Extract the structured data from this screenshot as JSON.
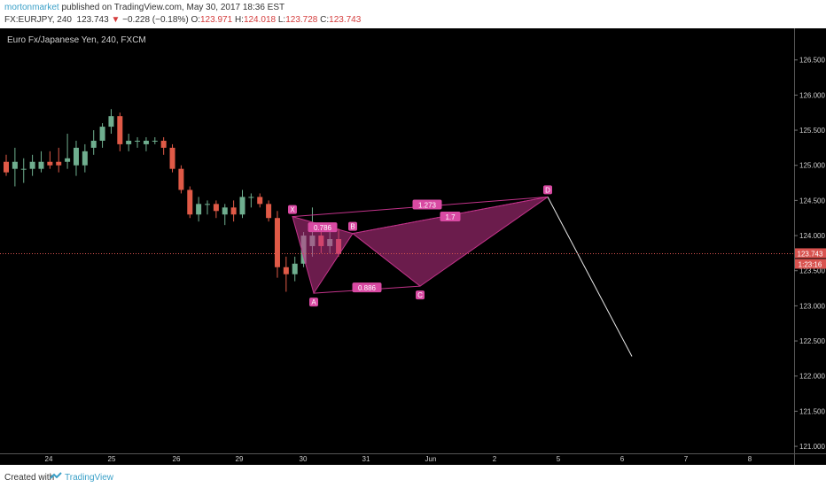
{
  "header": {
    "author": "mortonmarket",
    "published_text": "published on TradingView.com, May 30, 2017 18:36 EST",
    "symbol": "FX:EURJPY, 240",
    "last_price": "123.743",
    "change": "−0.228 (−0.18%)",
    "o_label": "O:",
    "o_value": "123.971",
    "h_label": "H:",
    "h_value": "124.018",
    "l_label": "L:",
    "l_value": "123.728",
    "c_label": "C:",
    "c_value": "123.743"
  },
  "footer": {
    "created_with": "Created with",
    "brand": "TradingView"
  },
  "colors": {
    "up": "#6fae8f",
    "down": "#e05a47",
    "pattern": "#c2338a",
    "label_bg": "#d94aa3",
    "last_price_tag": "#d9534f"
  },
  "chart_data": {
    "type": "candlestick",
    "title": "Euro Fx/Japanese Yen, 240, FXCM",
    "ylim": [
      120.9,
      126.95
    ],
    "y_ticks": [
      "121.000",
      "121.500",
      "122.000",
      "122.500",
      "123.000",
      "123.500",
      "124.000",
      "124.500",
      "125.000",
      "125.500",
      "126.000",
      "126.500"
    ],
    "x_ticks": [
      "24",
      "25",
      "26",
      "29",
      "30",
      "31",
      "Jun",
      "2",
      "5",
      "6",
      "7",
      "8"
    ],
    "last_price": "123.743",
    "countdown": "1:23:16",
    "candles": [
      {
        "o": 125.05,
        "h": 125.15,
        "l": 124.85,
        "c": 124.9
      },
      {
        "o": 124.95,
        "h": 125.25,
        "l": 124.7,
        "c": 125.05
      },
      {
        "o": 124.95,
        "h": 125.1,
        "l": 124.75,
        "c": 124.95
      },
      {
        "o": 124.95,
        "h": 125.15,
        "l": 124.85,
        "c": 125.05
      },
      {
        "o": 124.95,
        "h": 125.2,
        "l": 124.9,
        "c": 125.05
      },
      {
        "o": 125.05,
        "h": 125.2,
        "l": 124.95,
        "c": 125.0
      },
      {
        "o": 125.05,
        "h": 125.25,
        "l": 124.9,
        "c": 125.0
      },
      {
        "o": 125.05,
        "h": 125.45,
        "l": 124.95,
        "c": 125.1
      },
      {
        "o": 125.0,
        "h": 125.35,
        "l": 124.85,
        "c": 125.25
      },
      {
        "o": 125.0,
        "h": 125.3,
        "l": 124.9,
        "c": 125.2
      },
      {
        "o": 125.25,
        "h": 125.5,
        "l": 125.15,
        "c": 125.35
      },
      {
        "o": 125.35,
        "h": 125.6,
        "l": 125.25,
        "c": 125.55
      },
      {
        "o": 125.55,
        "h": 125.8,
        "l": 125.45,
        "c": 125.7
      },
      {
        "o": 125.7,
        "h": 125.75,
        "l": 125.2,
        "c": 125.3
      },
      {
        "o": 125.3,
        "h": 125.45,
        "l": 125.2,
        "c": 125.35
      },
      {
        "o": 125.35,
        "h": 125.4,
        "l": 125.25,
        "c": 125.35
      },
      {
        "o": 125.3,
        "h": 125.4,
        "l": 125.2,
        "c": 125.35
      },
      {
        "o": 125.35,
        "h": 125.4,
        "l": 125.3,
        "c": 125.35
      },
      {
        "o": 125.35,
        "h": 125.4,
        "l": 125.15,
        "c": 125.25
      },
      {
        "o": 125.25,
        "h": 125.3,
        "l": 124.9,
        "c": 124.95
      },
      {
        "o": 124.95,
        "h": 125.0,
        "l": 124.6,
        "c": 124.65
      },
      {
        "o": 124.65,
        "h": 124.7,
        "l": 124.25,
        "c": 124.3
      },
      {
        "o": 124.3,
        "h": 124.55,
        "l": 124.2,
        "c": 124.45
      },
      {
        "o": 124.45,
        "h": 124.5,
        "l": 124.3,
        "c": 124.45
      },
      {
        "o": 124.45,
        "h": 124.5,
        "l": 124.25,
        "c": 124.35
      },
      {
        "o": 124.3,
        "h": 124.45,
        "l": 124.15,
        "c": 124.4
      },
      {
        "o": 124.4,
        "h": 124.5,
        "l": 124.2,
        "c": 124.3
      },
      {
        "o": 124.3,
        "h": 124.65,
        "l": 124.25,
        "c": 124.55
      },
      {
        "o": 124.55,
        "h": 124.6,
        "l": 124.4,
        "c": 124.55
      },
      {
        "o": 124.55,
        "h": 124.6,
        "l": 124.4,
        "c": 124.45
      },
      {
        "o": 124.45,
        "h": 124.5,
        "l": 124.2,
        "c": 124.25
      },
      {
        "o": 124.25,
        "h": 124.35,
        "l": 123.4,
        "c": 123.55
      },
      {
        "o": 123.55,
        "h": 123.7,
        "l": 123.2,
        "c": 123.45
      },
      {
        "o": 123.45,
        "h": 123.7,
        "l": 123.35,
        "c": 123.6
      },
      {
        "o": 123.6,
        "h": 124.05,
        "l": 123.55,
        "c": 124.0
      },
      {
        "o": 123.85,
        "h": 124.4,
        "l": 123.7,
        "c": 124.0
      },
      {
        "o": 124.0,
        "h": 124.1,
        "l": 123.75,
        "c": 123.85
      },
      {
        "o": 123.85,
        "h": 124.05,
        "l": 123.75,
        "c": 123.95
      },
      {
        "o": 123.95,
        "h": 124.1,
        "l": 123.7,
        "c": 123.74
      }
    ],
    "harmonic_pattern": {
      "points": [
        {
          "label": "X",
          "x": "30",
          "y": 124.27
        },
        {
          "label": "A",
          "x": "30",
          "y": 123.18
        },
        {
          "label": "B",
          "x": "31",
          "y": 124.03
        },
        {
          "label": "C",
          "x": "Jun",
          "y": 123.28
        },
        {
          "label": "D",
          "x": "2",
          "y": 124.55
        }
      ],
      "ratios": [
        "0.786",
        "0.886",
        "1.273",
        "1.7"
      ]
    }
  }
}
